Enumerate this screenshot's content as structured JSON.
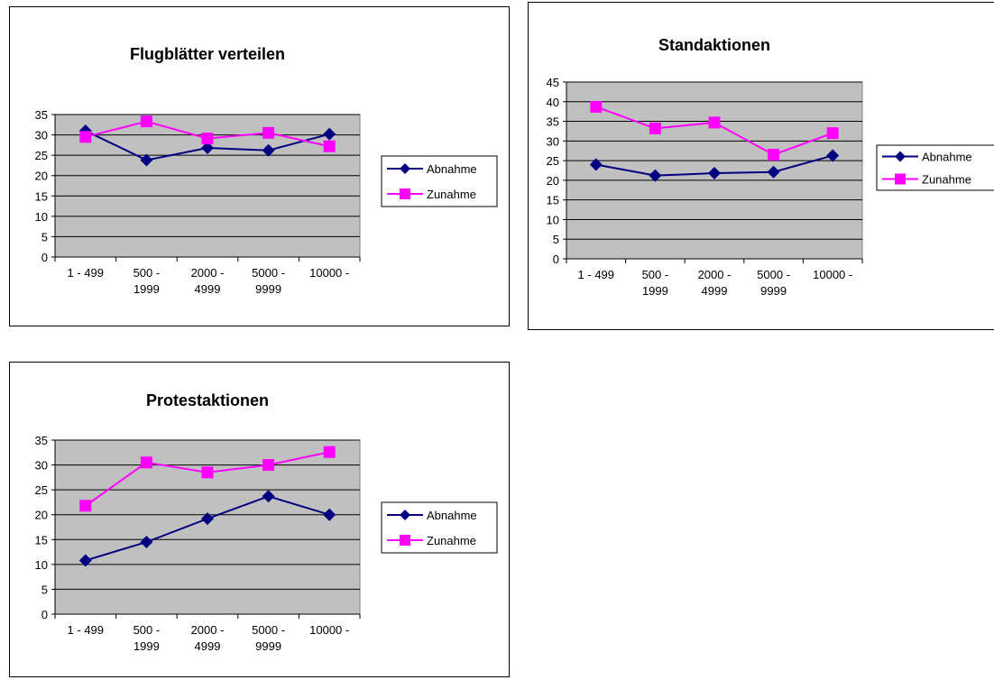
{
  "colors": {
    "abnahme": "#000080",
    "zunahme": "#ff00ff",
    "plot_area": "#c0c0c0",
    "grid": "#000000"
  },
  "chart_data": [
    {
      "type": "line",
      "title": "Flugblätter verteilen",
      "xlabel": "",
      "ylabel": "",
      "categories": [
        [
          "1 - 499"
        ],
        [
          "500 -",
          "1999"
        ],
        [
          "2000 -",
          "4999"
        ],
        [
          "5000 -",
          "9999"
        ],
        [
          "10000 -"
        ]
      ],
      "ylim": [
        0,
        35
      ],
      "ystep": 5,
      "grid": true,
      "legend": "right",
      "series": [
        {
          "name": "Abnahme",
          "marker": "diamond",
          "values": [
            31,
            23.8,
            26.8,
            26.2,
            30.2
          ]
        },
        {
          "name": "Zunahme",
          "marker": "square",
          "values": [
            29.5,
            33.3,
            29.1,
            30.5,
            27.2
          ]
        }
      ]
    },
    {
      "type": "line",
      "title": "Standaktionen",
      "xlabel": "",
      "ylabel": "",
      "categories": [
        [
          "1 - 499"
        ],
        [
          "500 -",
          "1999"
        ],
        [
          "2000 -",
          "4999"
        ],
        [
          "5000 -",
          "9999"
        ],
        [
          "10000 -"
        ]
      ],
      "ylim": [
        0,
        45
      ],
      "ystep": 5,
      "grid": true,
      "legend": "right",
      "series": [
        {
          "name": "Abnahme",
          "marker": "diamond",
          "values": [
            24,
            21.2,
            21.8,
            22.1,
            26.3
          ]
        },
        {
          "name": "Zunahme",
          "marker": "square",
          "values": [
            38.7,
            33.2,
            34.7,
            26.5,
            32
          ]
        }
      ]
    },
    {
      "type": "line",
      "title": "Protestaktionen",
      "xlabel": "",
      "ylabel": "",
      "categories": [
        [
          "1 - 499"
        ],
        [
          "500 -",
          "1999"
        ],
        [
          "2000 -",
          "4999"
        ],
        [
          "5000 -",
          "9999"
        ],
        [
          "10000 -"
        ]
      ],
      "ylim": [
        0,
        35
      ],
      "ystep": 5,
      "grid": true,
      "legend": "right",
      "series": [
        {
          "name": "Abnahme",
          "marker": "diamond",
          "values": [
            10.8,
            14.5,
            19.2,
            23.7,
            20
          ]
        },
        {
          "name": "Zunahme",
          "marker": "square",
          "values": [
            21.8,
            30.5,
            28.5,
            30,
            32.6
          ]
        }
      ]
    }
  ]
}
